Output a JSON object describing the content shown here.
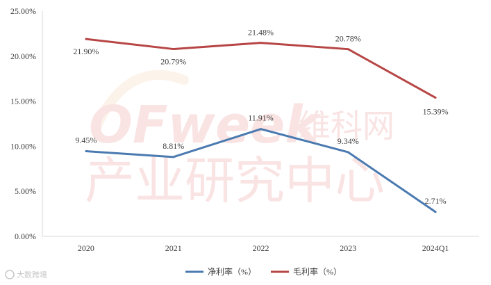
{
  "chart_data": {
    "type": "line",
    "categories": [
      "2020",
      "2021",
      "2022",
      "2023",
      "2024Q1"
    ],
    "series": [
      {
        "name": "净利率（%）",
        "values": [
          9.45,
          8.81,
          11.91,
          9.34,
          2.71
        ],
        "labels": [
          "9.45%",
          "8.81%",
          "11.91%",
          "9.34%",
          "2.71%"
        ],
        "color": "#4a7ab0"
      },
      {
        "name": "毛利率（%）",
        "values": [
          21.9,
          20.79,
          21.48,
          20.78,
          15.39
        ],
        "labels": [
          "21.90%",
          "20.79%",
          "21.48%",
          "20.78%",
          "15.39%"
        ],
        "color": "#b84545"
      }
    ],
    "y_ticks": [
      "0.00%",
      "5.00%",
      "10.00%",
      "15.00%",
      "20.00%",
      "25.00%"
    ],
    "ylim": [
      0,
      25
    ],
    "grid": false,
    "legend_position": "bottom-center",
    "title": "",
    "xlabel": "",
    "ylabel": ""
  },
  "watermark": {
    "logo_text": "OFweek",
    "brand_text": "维科网",
    "subtitle_text": "产业研究中心"
  },
  "source_mark": {
    "text": "大数跨境"
  }
}
